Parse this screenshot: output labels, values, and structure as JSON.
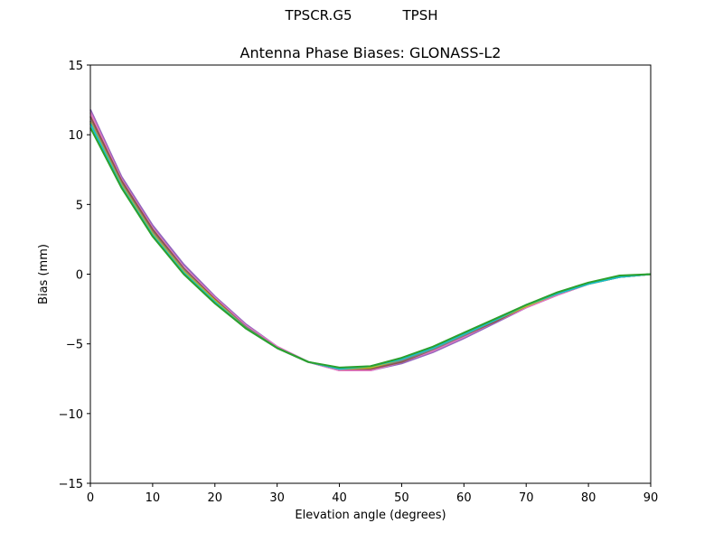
{
  "header": {
    "left_label": "TPSCR.G5",
    "right_label": "TPSH"
  },
  "chart_data": {
    "type": "line",
    "title": "Antenna Phase Biases: GLONASS-L2",
    "xlabel": "Elevation angle (degrees)",
    "ylabel": "Bias (mm)",
    "xlim": [
      0,
      90
    ],
    "ylim": [
      -15,
      15
    ],
    "xticks": [
      0,
      10,
      20,
      30,
      40,
      50,
      60,
      70,
      80,
      90
    ],
    "yticks": [
      -15,
      -10,
      -5,
      0,
      5,
      10,
      15
    ],
    "yticklabels": [
      "−15",
      "−10",
      "−5",
      "0",
      "5",
      "10",
      "15"
    ],
    "grid": false,
    "x": [
      0,
      5,
      10,
      15,
      20,
      25,
      30,
      35,
      40,
      45,
      50,
      55,
      60,
      65,
      70,
      75,
      80,
      85,
      90
    ],
    "series": [
      {
        "color": "#9467bd",
        "values": [
          11.8,
          7.0,
          3.5,
          0.7,
          -1.6,
          -3.6,
          -5.2,
          -6.3,
          -6.9,
          -6.9,
          -6.4,
          -5.6,
          -4.6,
          -3.5,
          -2.4,
          -1.5,
          -0.7,
          -0.2,
          0.0
        ]
      },
      {
        "color": "#e377c2",
        "values": [
          11.6,
          6.8,
          3.3,
          0.5,
          -1.7,
          -3.7,
          -5.2,
          -6.3,
          -6.9,
          -6.9,
          -6.3,
          -5.5,
          -4.5,
          -3.4,
          -2.4,
          -1.5,
          -0.7,
          -0.2,
          0.0
        ]
      },
      {
        "color": "#8c564b",
        "values": [
          11.3,
          6.7,
          3.2,
          0.4,
          -1.8,
          -3.8,
          -5.3,
          -6.3,
          -6.8,
          -6.8,
          -6.3,
          -5.4,
          -4.4,
          -3.4,
          -2.3,
          -1.4,
          -0.7,
          -0.2,
          0.0
        ]
      },
      {
        "color": "#7f7f7f",
        "values": [
          11.0,
          6.5,
          3.0,
          0.3,
          -1.9,
          -3.8,
          -5.3,
          -6.3,
          -6.8,
          -6.7,
          -6.2,
          -5.4,
          -4.4,
          -3.3,
          -2.3,
          -1.4,
          -0.7,
          -0.2,
          0.0
        ]
      },
      {
        "color": "#bcbd22",
        "values": [
          10.9,
          6.4,
          2.9,
          0.2,
          -1.9,
          -3.9,
          -5.3,
          -6.3,
          -6.8,
          -6.7,
          -6.1,
          -5.3,
          -4.3,
          -3.3,
          -2.3,
          -1.4,
          -0.7,
          -0.2,
          0.0
        ]
      },
      {
        "color": "#17becf",
        "values": [
          10.8,
          6.3,
          2.8,
          0.1,
          -2.0,
          -3.9,
          -5.3,
          -6.3,
          -6.8,
          -6.6,
          -6.1,
          -5.3,
          -4.3,
          -3.3,
          -2.2,
          -1.4,
          -0.7,
          -0.2,
          0.0
        ]
      },
      {
        "color": "#2ca02c",
        "values": [
          10.5,
          6.2,
          2.7,
          0.0,
          -2.1,
          -3.9,
          -5.3,
          -6.3,
          -6.7,
          -6.6,
          -6.0,
          -5.2,
          -4.2,
          -3.2,
          -2.2,
          -1.3,
          -0.6,
          -0.1,
          0.0
        ]
      }
    ]
  }
}
